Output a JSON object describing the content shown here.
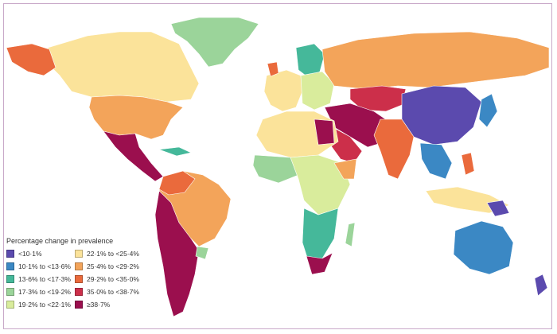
{
  "legend": {
    "title": "Percentage change in prevalence",
    "items": [
      {
        "label": "<10·1%",
        "color": "#5b4aae"
      },
      {
        "label": "10·1% to <13·6%",
        "color": "#3b88c4"
      },
      {
        "label": "13·6% to <17·3%",
        "color": "#45b89a"
      },
      {
        "label": "17·3% to <19·2%",
        "color": "#9bd49a"
      },
      {
        "label": "19·2% to <22·1%",
        "color": "#d9ec9c"
      },
      {
        "label": "22·1% to <25·4%",
        "color": "#fbe39a"
      },
      {
        "label": "25·4% to <29·2%",
        "color": "#f3a45a"
      },
      {
        "label": "29·2% to <35·0%",
        "color": "#ea6a3c"
      },
      {
        "label": "35·0% to <38·7%",
        "color": "#cc2f4a"
      },
      {
        "label": "≥38·7%",
        "color": "#9b0f4e"
      }
    ]
  }
}
